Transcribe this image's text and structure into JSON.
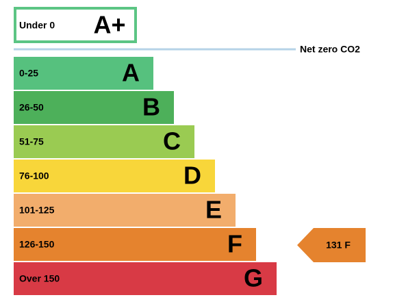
{
  "top_box": {
    "range": "Under 0",
    "rating": "A+"
  },
  "net_zero_label": "Net zero CO2",
  "bands": [
    {
      "range": "0-25",
      "rating": "A"
    },
    {
      "range": "26-50",
      "rating": "B"
    },
    {
      "range": "51-75",
      "rating": "C"
    },
    {
      "range": "76-100",
      "rating": "D"
    },
    {
      "range": "101-125",
      "rating": "E"
    },
    {
      "range": "126-150",
      "rating": "F"
    },
    {
      "range": "Over 150",
      "rating": "G"
    }
  ],
  "current": {
    "label": "131 F"
  }
}
